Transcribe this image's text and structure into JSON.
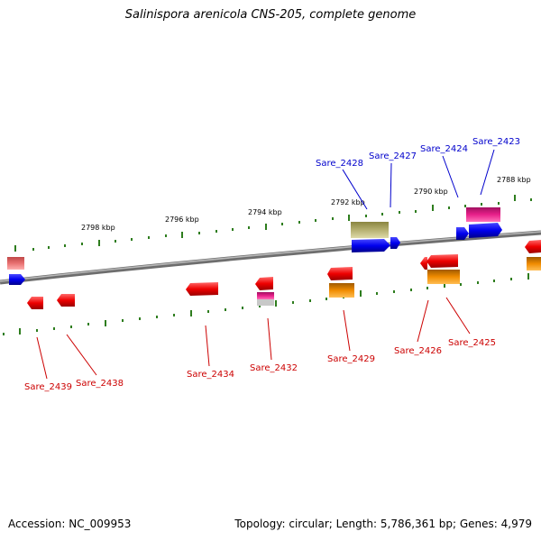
{
  "title": "Salinispora arenicola CNS-205, complete genome",
  "footer": {
    "accession": "Accession: NC_009953",
    "summary": "Topology: circular; Length: 5,786,361 bp; Genes: 4,979"
  },
  "scale": {
    "color": "#2e7d1e",
    "labels": [
      "2798 kbp",
      "2796 kbp",
      "2794 kbp",
      "2792 kbp",
      "2790 kbp",
      "2788 kbp"
    ]
  },
  "top_genes": {
    "color": "#0000cc",
    "labels": [
      "Sare_2428",
      "Sare_2427",
      "Sare_2424",
      "Sare_2423"
    ]
  },
  "bottom_genes": {
    "color": "#cc0000",
    "labels": [
      "Sare_2439",
      "Sare_2438",
      "Sare_2434",
      "Sare_2432",
      "Sare_2429",
      "Sare_2426",
      "Sare_2425"
    ]
  },
  "feature_colors": {
    "forward_cds": "#0000ee",
    "reverse_cds": "#ee0000",
    "pink": "#e8208a",
    "orange": "#f08c00",
    "olive": "#b5b070",
    "salmon": "#e87070",
    "backbone": "#888888"
  }
}
